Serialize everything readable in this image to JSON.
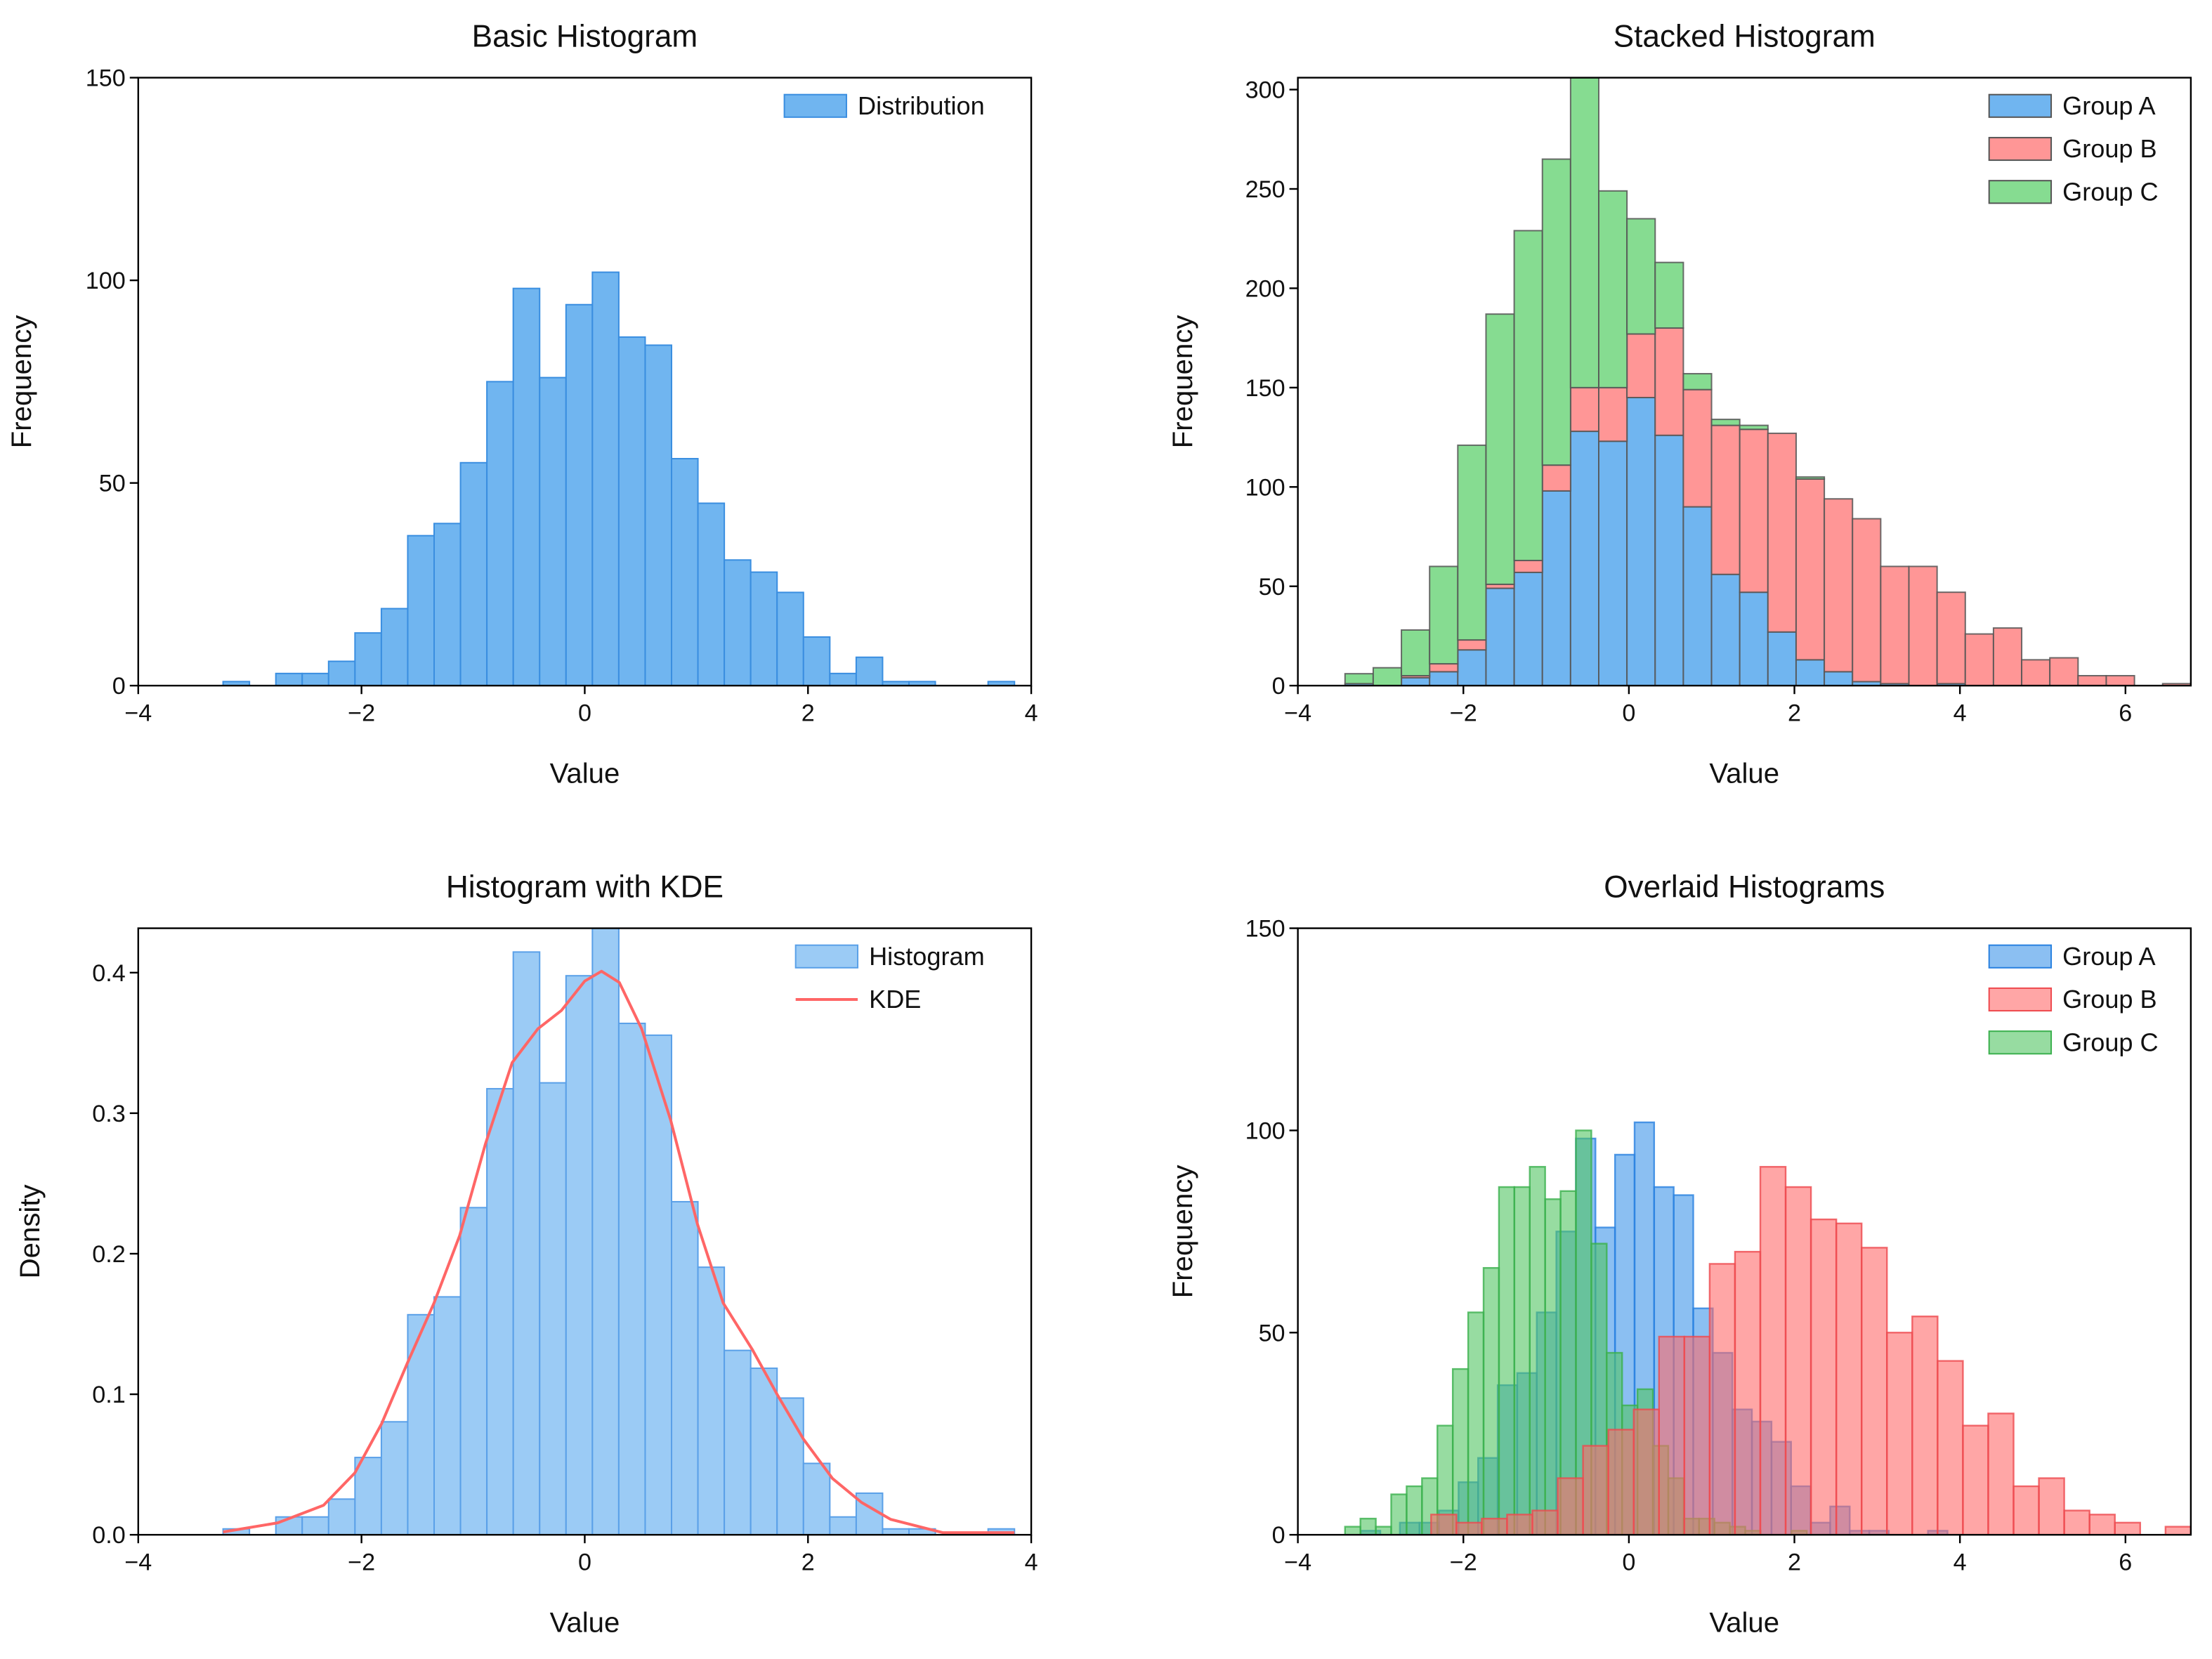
{
  "chart_data": [
    {
      "type": "bar",
      "title": "Basic Histogram",
      "xlabel": "Value",
      "ylabel": "Frequency",
      "xlim": [
        -4,
        4
      ],
      "ylim": [
        0,
        150
      ],
      "xticks": [
        -4,
        -2,
        0,
        2,
        4
      ],
      "xtick_labels": [
        "−4",
        "−2",
        "0",
        "2",
        "4"
      ],
      "yticks": [
        0,
        50,
        100,
        150
      ],
      "ytick_labels": [
        "0",
        "50",
        "100",
        "150"
      ],
      "grid": false,
      "legend": "top-right",
      "series": [
        {
          "name": "Distribution",
          "color": "#70b5f0",
          "edge": "#3a8ee0",
          "bin_range": [
            -3.24,
            3.85
          ],
          "values": [
            1,
            0,
            3,
            3,
            6,
            13,
            19,
            37,
            40,
            55,
            75,
            98,
            76,
            94,
            102,
            86,
            84,
            56,
            45,
            31,
            28,
            23,
            12,
            3,
            7,
            1,
            1,
            0,
            0,
            1
          ]
        }
      ]
    },
    {
      "type": "bar",
      "stacked": true,
      "title": "Stacked Histogram",
      "xlabel": "Value",
      "ylabel": "Frequency",
      "xlim": [
        -4,
        6.79
      ],
      "ylim": [
        0,
        306
      ],
      "xticks": [
        -4,
        -2,
        0,
        2,
        4,
        6
      ],
      "xtick_labels": [
        "−4",
        "−2",
        "0",
        "2",
        "4",
        "6"
      ],
      "yticks": [
        0,
        50,
        100,
        150,
        200,
        250,
        300
      ],
      "ytick_labels": [
        "0",
        "50",
        "100",
        "150",
        "200",
        "250",
        "300"
      ],
      "grid": false,
      "legend": "top-right",
      "bin_range": [
        -3.43,
        6.79
      ],
      "series": [
        {
          "name": "Group A",
          "color": "#70b5f0",
          "values": [
            1,
            0,
            4,
            7,
            18,
            49,
            57,
            98,
            128,
            123,
            145,
            126,
            90,
            56,
            47,
            27,
            13,
            7,
            2,
            1,
            0,
            1,
            0,
            0,
            0,
            0,
            0,
            0,
            0,
            0
          ]
        },
        {
          "name": "Group B",
          "color": "#ff9696",
          "values": [
            0,
            0,
            1,
            4,
            5,
            2,
            6,
            13,
            22,
            27,
            32,
            54,
            59,
            75,
            82,
            100,
            91,
            87,
            82,
            59,
            60,
            46,
            26,
            29,
            13,
            14,
            5,
            5,
            0,
            1
          ]
        },
        {
          "name": "Group C",
          "color": "#86dc91",
          "values": [
            5,
            9,
            23,
            49,
            98,
            136,
            166,
            154,
            156,
            99,
            58,
            33,
            8,
            3,
            2,
            0,
            1,
            0,
            0,
            0,
            0,
            0,
            0,
            0,
            0,
            0,
            0,
            0,
            0,
            0
          ]
        }
      ]
    },
    {
      "type": "bar",
      "title": "Histogram with KDE",
      "xlabel": "Value",
      "ylabel": "Density",
      "xlim": [
        -4,
        4
      ],
      "ylim": [
        0,
        0.4316
      ],
      "xticks": [
        -4,
        -2,
        0,
        2,
        4
      ],
      "xtick_labels": [
        "−4",
        "−2",
        "0",
        "2",
        "4"
      ],
      "yticks": [
        0,
        0.1,
        0.2,
        0.3,
        0.4
      ],
      "ytick_labels": [
        "0.0",
        "0.1",
        "0.2",
        "0.3",
        "0.4"
      ],
      "grid": false,
      "legend": "top-right",
      "series": [
        {
          "name": "Histogram",
          "color": "#9bcbf5",
          "edge": "#5aa0e8",
          "bin_range": [
            -3.24,
            3.85
          ],
          "values": [
            0.0042,
            0,
            0.0127,
            0.0127,
            0.0254,
            0.055,
            0.0804,
            0.1566,
            0.1693,
            0.2328,
            0.3174,
            0.4147,
            0.3216,
            0.3978,
            0.4316,
            0.3639,
            0.3555,
            0.237,
            0.1904,
            0.1312,
            0.1185,
            0.0973,
            0.0508,
            0.0127,
            0.0296,
            0.0042,
            0.0042,
            0,
            0,
            0.0042
          ]
        },
        {
          "name": "KDE",
          "type": "line",
          "color": "#ff6666",
          "x": [
            -3.24,
            -2.75,
            -2.34,
            -2.06,
            -1.82,
            -1.59,
            -1.35,
            -1.12,
            -0.89,
            -0.65,
            -0.42,
            -0.21,
            0,
            0.15,
            0.31,
            0.51,
            0.77,
            1.01,
            1.24,
            1.5,
            1.73,
            1.96,
            2.22,
            2.48,
            2.74,
            3.21,
            3.85
          ],
          "y": [
            0.002,
            0.0085,
            0.021,
            0.044,
            0.079,
            0.122,
            0.165,
            0.213,
            0.278,
            0.336,
            0.36,
            0.373,
            0.394,
            0.401,
            0.393,
            0.36,
            0.295,
            0.221,
            0.165,
            0.132,
            0.099,
            0.068,
            0.04,
            0.023,
            0.011,
            0.0015,
            0.0015
          ]
        }
      ]
    },
    {
      "type": "bar",
      "title": "Overlaid Histograms",
      "xlabel": "Value",
      "ylabel": "Frequency",
      "xlim": [
        -4,
        6.79
      ],
      "ylim": [
        0,
        150
      ],
      "xticks": [
        -4,
        -2,
        0,
        2,
        4,
        6
      ],
      "xtick_labels": [
        "−4",
        "−2",
        "0",
        "2",
        "4",
        "6"
      ],
      "yticks": [
        0,
        50,
        100,
        150
      ],
      "ytick_labels": [
        "0",
        "50",
        "100",
        "150"
      ],
      "grid": false,
      "legend": "top-right",
      "series": [
        {
          "name": "Group A",
          "color": "#3d94ea",
          "edge": "#2a82e0",
          "bin_range": [
            -3.24,
            3.85
          ],
          "values": [
            1,
            0,
            3,
            3,
            6,
            13,
            19,
            37,
            40,
            55,
            75,
            98,
            76,
            94,
            102,
            86,
            84,
            56,
            45,
            31,
            28,
            23,
            12,
            3,
            7,
            1,
            1,
            0,
            0,
            1
          ]
        },
        {
          "name": "Group B",
          "color": "#ff6b6b",
          "edge": "#ee4a4f",
          "bin_range": [
            -2.39,
            6.79
          ],
          "values": [
            5,
            3,
            4,
            5,
            6,
            14,
            22,
            26,
            31,
            49,
            49,
            67,
            70,
            91,
            86,
            78,
            77,
            71,
            50,
            54,
            43,
            27,
            30,
            12,
            14,
            6,
            5,
            3,
            0,
            2
          ]
        },
        {
          "name": "Group C",
          "color": "#51c463",
          "edge": "#3bb04e",
          "bin_range": [
            -3.43,
            2.15
          ],
          "values": [
            2,
            4,
            2,
            10,
            12,
            14,
            27,
            41,
            55,
            66,
            86,
            86,
            91,
            83,
            85,
            100,
            72,
            45,
            32,
            36,
            22,
            14,
            4,
            4,
            3,
            2,
            1,
            0,
            0,
            1
          ]
        }
      ]
    }
  ]
}
